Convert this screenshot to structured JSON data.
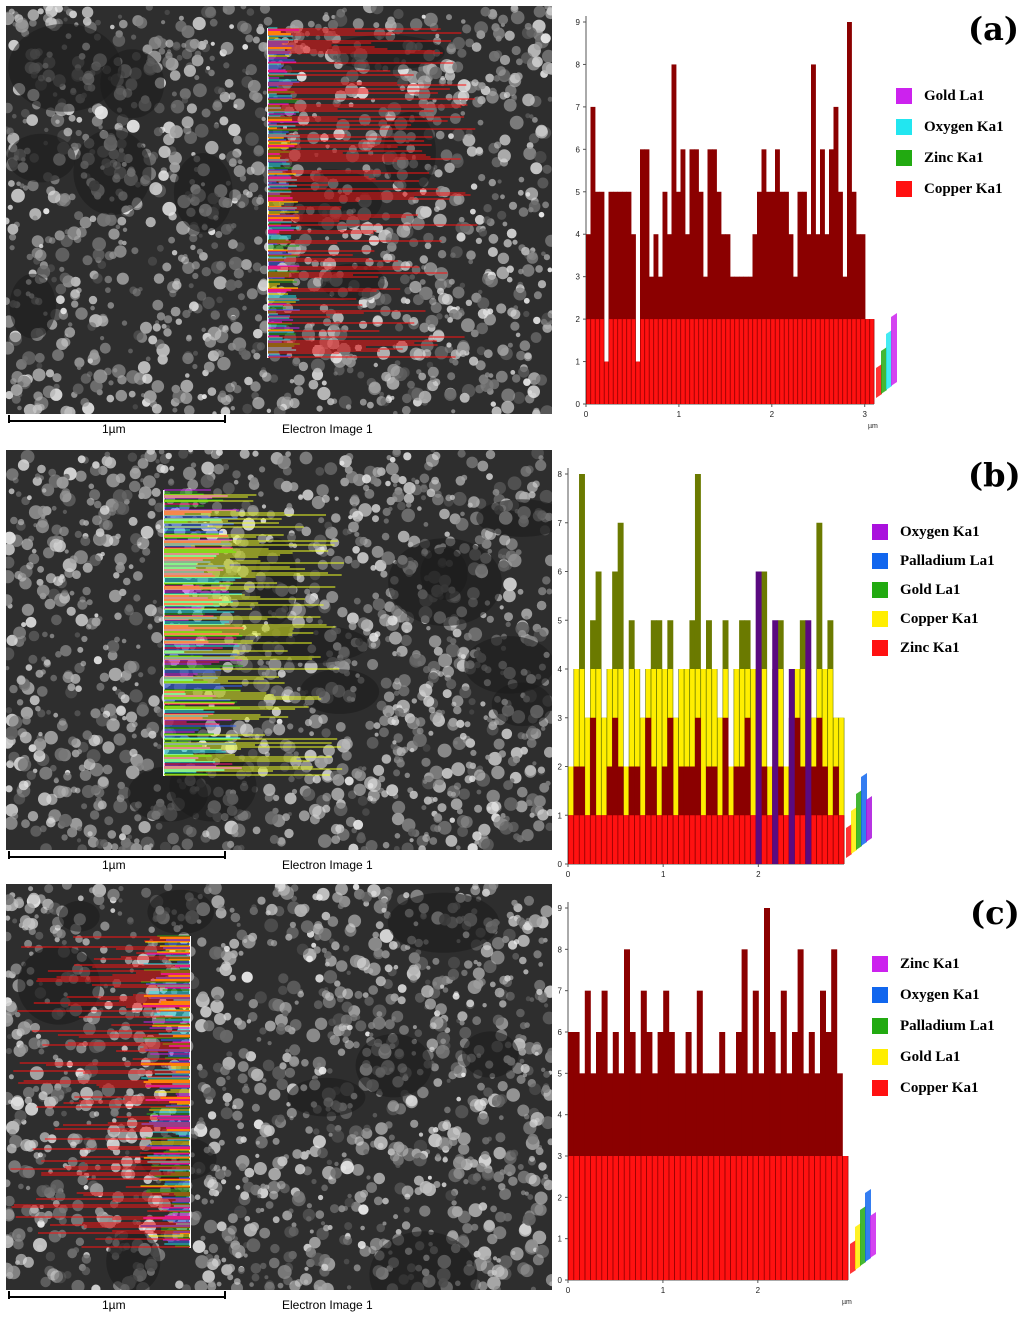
{
  "figure": {
    "panels": [
      {
        "id": "a",
        "label": "(a)",
        "scale_bar_label": "1µm",
        "image_caption": "Electron Image 1",
        "legend": [
          {
            "name": "Gold La1",
            "color": "#cc22ee"
          },
          {
            "name": "Oxygen Ka1",
            "color": "#22e6f0"
          },
          {
            "name": "Zinc Ka1",
            "color": "#22aa11"
          },
          {
            "name": "Copper Ka1",
            "color": "#ff1111"
          }
        ],
        "chart_data": {
          "type": "bar",
          "x_unit": "µm",
          "xlim": [
            0,
            3.1
          ],
          "ylim": [
            0,
            9
          ],
          "x_ticks": [
            "0",
            "1",
            "2",
            "3"
          ],
          "y_ticks": [
            "0",
            "1",
            "2",
            "3",
            "4",
            "5",
            "6",
            "7",
            "8",
            "9"
          ],
          "series": [
            {
              "name": "Copper Ka1",
              "color": "#ff1111",
              "shade": "#8b0000",
              "values": [
                4,
                7,
                5,
                5,
                1,
                5,
                5,
                5,
                5,
                5,
                4,
                1,
                6,
                6,
                3,
                4,
                3,
                5,
                4,
                8,
                5,
                6,
                4,
                6,
                6,
                5,
                3,
                6,
                6,
                5,
                4,
                4,
                3,
                3,
                3,
                3,
                3,
                4,
                5,
                6,
                5,
                5,
                6,
                5,
                5,
                4,
                3,
                5,
                5,
                4,
                8,
                4,
                6,
                4,
                6,
                7,
                5,
                3,
                9,
                5,
                4,
                4,
                2,
                2
              ]
            }
          ]
        }
      },
      {
        "id": "b",
        "label": "(b)",
        "scale_bar_label": "1µm",
        "image_caption": "Electron Image 1",
        "legend": [
          {
            "name": "Oxygen Ka1",
            "color": "#aa11dd"
          },
          {
            "name": "Palladium La1",
            "color": "#1166ee"
          },
          {
            "name": "Gold La1",
            "color": "#22aa11"
          },
          {
            "name": "Copper Ka1",
            "color": "#ffee00"
          },
          {
            "name": "Zinc Ka1",
            "color": "#ff1111"
          }
        ],
        "chart_data": {
          "type": "bar",
          "x_unit": "µm",
          "xlim": [
            0,
            2.9
          ],
          "ylim": [
            0,
            8
          ],
          "x_ticks": [
            "0",
            "1",
            "2"
          ],
          "y_ticks": [
            "0",
            "1",
            "2",
            "3",
            "4",
            "5",
            "6",
            "7",
            "8"
          ],
          "series": [
            {
              "name": "Copper Ka1",
              "color": "#ffee00",
              "shade": "#6b7a00",
              "values": [
                2,
                4,
                8,
                3,
                5,
                6,
                3,
                4,
                6,
                7,
                2,
                5,
                4,
                3,
                4,
                5,
                5,
                4,
                5,
                3,
                4,
                4,
                5,
                8,
                4,
                5,
                4,
                3,
                5,
                2,
                4,
                5,
                5,
                4,
                3,
                6,
                2,
                4,
                5,
                2,
                3,
                4,
                5,
                4,
                3,
                7,
                4,
                5,
                3,
                3
              ]
            },
            {
              "name": "Zinc Ka1",
              "color": "#ff1111",
              "shade": "#8b0000",
              "values": [
                1,
                2,
                2,
                1,
                3,
                1,
                1,
                2,
                3,
                2,
                1,
                2,
                2,
                1,
                3,
                2,
                1,
                2,
                3,
                1,
                2,
                2,
                2,
                3,
                1,
                2,
                2,
                1,
                3,
                1,
                2,
                2,
                3,
                1,
                1,
                2,
                1,
                2,
                2,
                1,
                2,
                3,
                2,
                1,
                2,
                3,
                2,
                1,
                2,
                1
              ]
            },
            {
              "name": "Oxygen Ka1",
              "color": "#aa11dd",
              "shade": "#5a0a80",
              "values": [
                0,
                0,
                0,
                0,
                0,
                0,
                0,
                0,
                0,
                0,
                0,
                0,
                0,
                0,
                0,
                0,
                0,
                0,
                0,
                0,
                0,
                0,
                0,
                0,
                0,
                0,
                0,
                0,
                0,
                0,
                0,
                0,
                0,
                0,
                6,
                0,
                0,
                5,
                0,
                0,
                4,
                0,
                0,
                5,
                0,
                0,
                0,
                0,
                0,
                0
              ]
            }
          ]
        }
      },
      {
        "id": "c",
        "label": "(c)",
        "scale_bar_label": "1µm",
        "image_caption": "Electron Image 1",
        "legend": [
          {
            "name": "Zinc Ka1",
            "color": "#cc22ee"
          },
          {
            "name": "Oxygen Ka1",
            "color": "#1166ee"
          },
          {
            "name": "Palladium La1",
            "color": "#22aa11"
          },
          {
            "name": "Gold La1",
            "color": "#ffee00"
          },
          {
            "name": "Copper Ka1",
            "color": "#ff1111"
          }
        ],
        "chart_data": {
          "type": "bar",
          "x_unit": "µm",
          "xlim": [
            0,
            2.95
          ],
          "ylim": [
            0,
            9
          ],
          "x_ticks": [
            "0",
            "1",
            "2"
          ],
          "y_ticks": [
            "0",
            "1",
            "2",
            "3",
            "4",
            "5",
            "6",
            "7",
            "8",
            "9"
          ],
          "series": [
            {
              "name": "Copper Ka1",
              "color": "#ff1111",
              "shade": "#8b0000",
              "values": [
                6,
                6,
                5,
                7,
                5,
                6,
                7,
                5,
                6,
                5,
                8,
                6,
                5,
                7,
                6,
                5,
                6,
                7,
                6,
                5,
                5,
                6,
                5,
                7,
                5,
                5,
                5,
                6,
                5,
                5,
                6,
                8,
                5,
                7,
                5,
                9,
                6,
                5,
                7,
                5,
                6,
                8,
                5,
                6,
                5,
                7,
                6,
                8,
                5,
                3
              ]
            }
          ]
        }
      }
    ]
  }
}
